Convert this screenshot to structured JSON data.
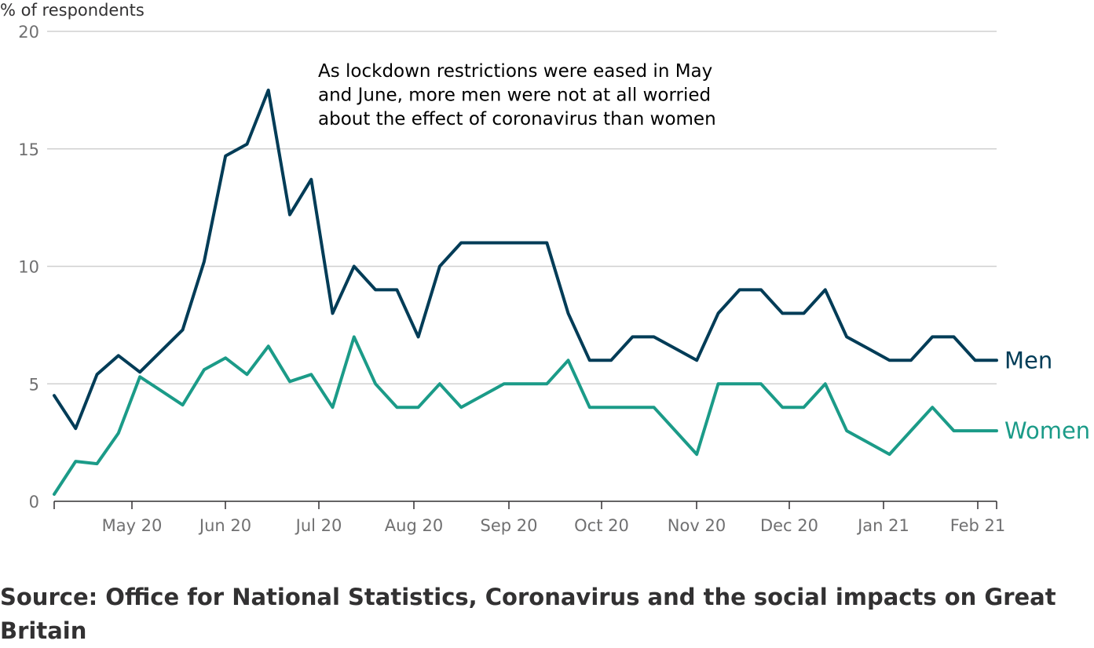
{
  "chart_data": {
    "type": "line",
    "ylabel": "% of respondents",
    "ylim": [
      0,
      20
    ],
    "yticks": [
      "0",
      "5",
      "10",
      "15",
      "20"
    ],
    "xticks": [
      "May 20",
      "Jun 20",
      "Jul 20",
      "Aug 20",
      "Sep 20",
      "Oct 20",
      "Nov 20",
      "Dec 20",
      "Jan 21",
      "Feb 21"
    ],
    "annotation": [
      "As lockdown restrictions were eased in May",
      "and June, more men were not at all worried",
      "about the effect of coronavirus than women"
    ],
    "grid": true,
    "series": [
      {
        "name": "Men",
        "color": "#003c57",
        "values": [
          4.5,
          3.1,
          5.4,
          6.2,
          5.5,
          6.4,
          7.3,
          10.2,
          14.7,
          15.2,
          17.5,
          12.2,
          13.7,
          8.0,
          10.0,
          9.0,
          9.0,
          7.0,
          10.0,
          11.0,
          11.0,
          11.0,
          11.0,
          11.0,
          8.0,
          6.0,
          6.0,
          7.0,
          7.0,
          6.5,
          6.0,
          8.0,
          9.0,
          9.0,
          8.0,
          8.0,
          9.0,
          7.0,
          6.5,
          6.0,
          6.0,
          7.0,
          7.0,
          6.0,
          6.0
        ]
      },
      {
        "name": "Women",
        "color": "#1b9b88",
        "values": [
          0.3,
          1.7,
          1.6,
          2.9,
          5.3,
          4.7,
          4.1,
          5.6,
          6.1,
          5.4,
          6.6,
          5.1,
          5.4,
          4.0,
          7.0,
          5.0,
          4.0,
          4.0,
          5.0,
          4.0,
          4.5,
          5.0,
          5.0,
          5.0,
          6.0,
          4.0,
          4.0,
          4.0,
          4.0,
          3.0,
          2.0,
          5.0,
          5.0,
          5.0,
          4.0,
          4.0,
          5.0,
          3.0,
          2.5,
          2.0,
          3.0,
          4.0,
          3.0,
          3.0,
          3.0
        ]
      }
    ]
  },
  "source": "Source: Office for National Statistics, Coronavirus and the social impacts on Great Britain"
}
